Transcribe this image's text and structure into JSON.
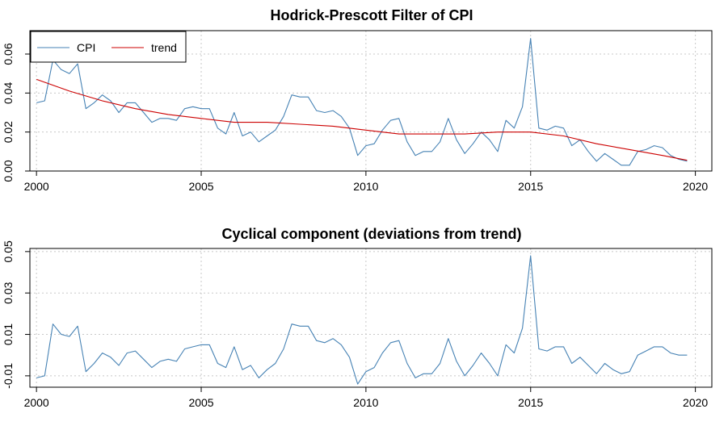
{
  "chart_data": [
    {
      "type": "line",
      "title": "Hodrick-Prescott Filter of CPI",
      "xlabel": "",
      "ylabel": "",
      "xlim": [
        1999.8,
        2020.5
      ],
      "ylim": [
        0,
        0.072
      ],
      "x_ticks": [
        2000,
        2005,
        2010,
        2015,
        2020
      ],
      "y_ticks": [
        0.0,
        0.02,
        0.04,
        0.06
      ],
      "y_tick_labels": [
        "0.00",
        "0.02",
        "0.04",
        "0.06"
      ],
      "grid": true,
      "legend": "top-left",
      "series": [
        {
          "name": "CPI",
          "color": "#4682B4",
          "x": [
            2000,
            2000.25,
            2000.5,
            2000.75,
            2001,
            2001.25,
            2001.5,
            2001.75,
            2002,
            2002.25,
            2002.5,
            2002.75,
            2003,
            2003.25,
            2003.5,
            2003.75,
            2004,
            2004.25,
            2004.5,
            2004.75,
            2005,
            2005.25,
            2005.5,
            2005.75,
            2006,
            2006.25,
            2006.5,
            2006.75,
            2007,
            2007.25,
            2007.5,
            2007.75,
            2008,
            2008.25,
            2008.5,
            2008.75,
            2009,
            2009.25,
            2009.5,
            2009.75,
            2010,
            2010.25,
            2010.5,
            2010.75,
            2011,
            2011.25,
            2011.5,
            2011.75,
            2012,
            2012.25,
            2012.5,
            2012.75,
            2013,
            2013.25,
            2013.5,
            2013.75,
            2014,
            2014.25,
            2014.5,
            2014.75,
            2015,
            2015.25,
            2015.5,
            2015.75,
            2016,
            2016.25,
            2016.5,
            2016.75,
            2017,
            2017.25,
            2017.5,
            2017.75,
            2018,
            2018.25,
            2018.5,
            2018.75,
            2019,
            2019.25,
            2019.5,
            2019.75
          ],
          "y": [
            0.035,
            0.036,
            0.057,
            0.052,
            0.05,
            0.055,
            0.032,
            0.035,
            0.039,
            0.036,
            0.03,
            0.035,
            0.035,
            0.03,
            0.025,
            0.027,
            0.027,
            0.026,
            0.032,
            0.033,
            0.032,
            0.032,
            0.022,
            0.019,
            0.03,
            0.018,
            0.02,
            0.015,
            0.018,
            0.021,
            0.028,
            0.039,
            0.038,
            0.038,
            0.031,
            0.03,
            0.031,
            0.028,
            0.022,
            0.008,
            0.013,
            0.014,
            0.021,
            0.026,
            0.027,
            0.015,
            0.008,
            0.01,
            0.01,
            0.015,
            0.027,
            0.016,
            0.009,
            0.014,
            0.02,
            0.016,
            0.01,
            0.026,
            0.022,
            0.033,
            0.068,
            0.022,
            0.021,
            0.023,
            0.022,
            0.013,
            0.016,
            0.01,
            0.005,
            0.009,
            0.006,
            0.003,
            0.003,
            0.01,
            0.011,
            0.013,
            0.012,
            0.008,
            0.006,
            0.005
          ]
        },
        {
          "name": "trend",
          "color": "#CC0000",
          "x": [
            2000,
            2001,
            2002,
            2003,
            2004,
            2005,
            2006,
            2007,
            2008,
            2009,
            2010,
            2011,
            2012,
            2013,
            2014,
            2015,
            2016,
            2017,
            2018,
            2019,
            2019.75
          ],
          "y": [
            0.047,
            0.041,
            0.036,
            0.032,
            0.029,
            0.027,
            0.025,
            0.025,
            0.024,
            0.023,
            0.021,
            0.019,
            0.019,
            0.019,
            0.02,
            0.02,
            0.018,
            0.014,
            0.011,
            0.008,
            0.0055
          ]
        }
      ]
    },
    {
      "type": "line",
      "title": "Cyclical component (deviations from trend)",
      "xlabel": "",
      "ylabel": "",
      "xlim": [
        1999.8,
        2020.5
      ],
      "ylim": [
        -0.0155,
        0.0515
      ],
      "x_ticks": [
        2000,
        2005,
        2010,
        2015,
        2020
      ],
      "y_ticks": [
        -0.01,
        0.01,
        0.03,
        0.05
      ],
      "y_tick_labels": [
        "-0.01",
        "0.01",
        "0.03",
        "0.05"
      ],
      "grid": true,
      "series": [
        {
          "color": "#4682B4",
          "x": [
            2000,
            2000.25,
            2000.5,
            2000.75,
            2001,
            2001.25,
            2001.5,
            2001.75,
            2002,
            2002.25,
            2002.5,
            2002.75,
            2003,
            2003.25,
            2003.5,
            2003.75,
            2004,
            2004.25,
            2004.5,
            2004.75,
            2005,
            2005.25,
            2005.5,
            2005.75,
            2006,
            2006.25,
            2006.5,
            2006.75,
            2007,
            2007.25,
            2007.5,
            2007.75,
            2008,
            2008.25,
            2008.5,
            2008.75,
            2009,
            2009.25,
            2009.5,
            2009.75,
            2010,
            2010.25,
            2010.5,
            2010.75,
            2011,
            2011.25,
            2011.5,
            2011.75,
            2012,
            2012.25,
            2012.5,
            2012.75,
            2013,
            2013.25,
            2013.5,
            2013.75,
            2014,
            2014.25,
            2014.5,
            2014.75,
            2015,
            2015.25,
            2015.5,
            2015.75,
            2016,
            2016.25,
            2016.5,
            2016.75,
            2017,
            2017.25,
            2017.5,
            2017.75,
            2018,
            2018.25,
            2018.5,
            2018.75,
            2019,
            2019.25,
            2019.5,
            2019.75
          ],
          "y": [
            -0.011,
            -0.01,
            0.015,
            0.01,
            0.009,
            0.014,
            -0.008,
            -0.004,
            0.001,
            -0.001,
            -0.005,
            0.001,
            0.002,
            -0.002,
            -0.006,
            -0.003,
            -0.002,
            -0.003,
            0.003,
            0.004,
            0.005,
            0.005,
            -0.004,
            -0.006,
            0.004,
            -0.007,
            -0.005,
            -0.011,
            -0.007,
            -0.004,
            0.003,
            0.015,
            0.014,
            0.014,
            0.007,
            0.006,
            0.008,
            0.005,
            -0.001,
            -0.014,
            -0.008,
            -0.006,
            0.001,
            0.006,
            0.007,
            -0.004,
            -0.011,
            -0.009,
            -0.009,
            -0.004,
            0.008,
            -0.003,
            -0.01,
            -0.005,
            0.001,
            -0.004,
            -0.01,
            0.005,
            0.001,
            0.013,
            0.048,
            0.003,
            0.002,
            0.004,
            0.004,
            -0.004,
            -0.001,
            -0.005,
            -0.009,
            -0.004,
            -0.007,
            -0.009,
            -0.008,
            0.0,
            0.002,
            0.004,
            0.004,
            0.001,
            0.0,
            0.0
          ]
        }
      ]
    }
  ]
}
